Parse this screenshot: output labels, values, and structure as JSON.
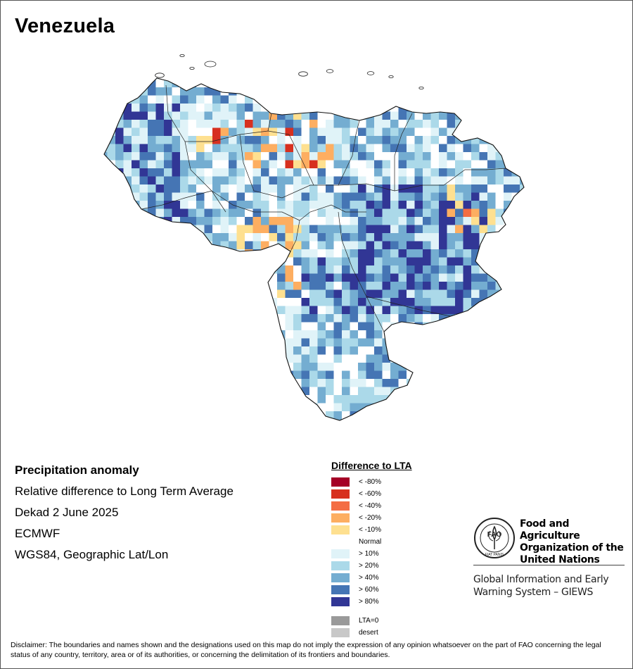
{
  "map_title": "Venezuela",
  "info": {
    "heading": "Precipitation anomaly",
    "subtitle": "Relative difference to Long Term Average",
    "period": "Dekad 2 June 2025",
    "source": "ECMWF",
    "projection": "WGS84, Geographic Lat/Lon"
  },
  "legend": {
    "title": "Difference to LTA",
    "classes": [
      {
        "label": "< -80%",
        "color": "#a50026"
      },
      {
        "label": "< -60%",
        "color": "#d7301f"
      },
      {
        "label": "< -40%",
        "color": "#f46d43"
      },
      {
        "label": "< -20%",
        "color": "#fdae61"
      },
      {
        "label": "< -10%",
        "color": "#fee090"
      },
      {
        "label": "Normal",
        "color": "#ffffff"
      },
      {
        "label": "> 10%",
        "color": "#e0f3f8"
      },
      {
        "label": "> 20%",
        "color": "#abd9e9"
      },
      {
        "label": "> 40%",
        "color": "#74add1"
      },
      {
        "label": "> 60%",
        "color": "#4575b4"
      },
      {
        "label": "> 80%",
        "color": "#313695"
      }
    ],
    "extra": [
      {
        "label": "LTA=0",
        "color": "#9a9a9a"
      },
      {
        "label": "desert",
        "color": "#c8c8c8"
      }
    ]
  },
  "organization": {
    "logo_text": "FAO",
    "logo_motto": "FIAT PANIS",
    "name_line1": "Food and Agriculture",
    "name_line2": "Organization of the",
    "name_line3": "United Nations",
    "system_line1": "Global Information and Early",
    "system_line2": "Warning System – GIEWS"
  },
  "disclaimer": "Disclaimer: The boundaries and names shown and the designations used on this map do not imply the expression of any opinion whatsoever on the part of FAO concerning the legal status of any country, territory, area or of its authorities, or concerning the delimitation of its frontiers and boundaries."
}
